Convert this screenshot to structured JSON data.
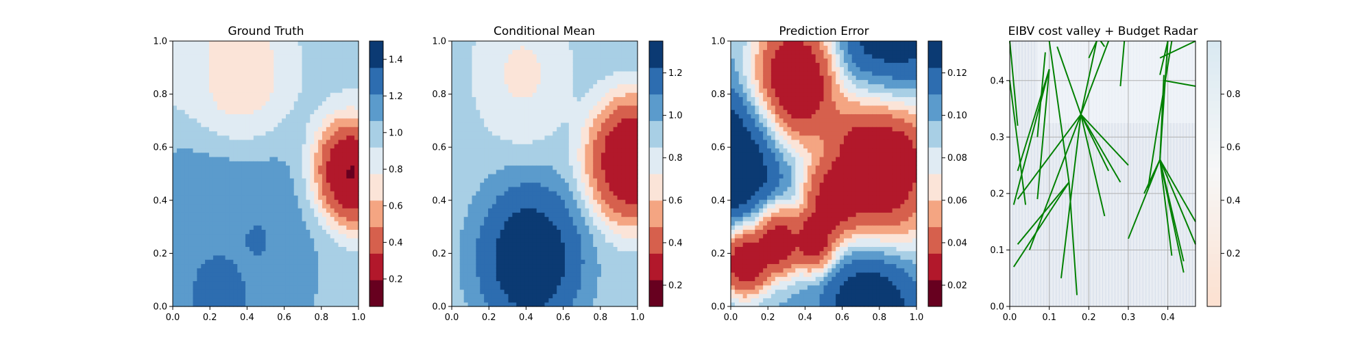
{
  "chart_data": [
    {
      "type": "heatmap",
      "title": "Ground Truth",
      "xlim": [
        0,
        1
      ],
      "ylim": [
        0,
        1
      ],
      "xticks": [
        "0.0",
        "0.2",
        "0.4",
        "0.6",
        "0.8",
        "1.0"
      ],
      "yticks": [
        "0.0",
        "0.2",
        "0.4",
        "0.6",
        "0.8",
        "1.0"
      ],
      "colormap": "RdBu",
      "colorbar": {
        "range": [
          0.05,
          1.5
        ],
        "ticks": [
          "0.2",
          "0.4",
          "0.6",
          "0.8",
          "1.0",
          "1.2",
          "1.4"
        ],
        "tick_values": [
          0.2,
          0.4,
          0.6,
          0.8,
          1.0,
          1.2,
          1.4
        ]
      },
      "features": [
        {
          "x": 0.95,
          "y": 0.5,
          "value": 0.05,
          "spread": 0.1
        },
        {
          "x": 0.35,
          "y": 0.85,
          "value": 0.65,
          "spread": 0.13
        },
        {
          "x": 0.3,
          "y": 0.2,
          "value": 1.2,
          "spread": 0.25
        },
        {
          "x": 0.25,
          "y": 0.05,
          "value": 1.45,
          "spread": 0.08
        },
        {
          "x": 0.45,
          "y": 0.25,
          "value": 1.45,
          "spread": 0.03
        },
        {
          "x": 0.05,
          "y": 0.85,
          "value": 0.9,
          "spread": 0.08
        }
      ],
      "base_value": 0.95
    },
    {
      "type": "heatmap",
      "title": "Conditional Mean",
      "xlim": [
        0,
        1
      ],
      "ylim": [
        0,
        1
      ],
      "xticks": [
        "0.0",
        "0.2",
        "0.4",
        "0.6",
        "0.8",
        "1.0"
      ],
      "yticks": [
        "0.0",
        "0.2",
        "0.4",
        "0.6",
        "0.8",
        "1.0"
      ],
      "colormap": "RdBu",
      "colorbar": {
        "range": [
          0.1,
          1.35
        ],
        "ticks": [
          "0.2",
          "0.4",
          "0.6",
          "0.8",
          "1.0",
          "1.2"
        ],
        "tick_values": [
          0.2,
          0.4,
          0.6,
          0.8,
          1.0,
          1.2
        ]
      },
      "features": [
        {
          "x": 0.97,
          "y": 0.55,
          "value": 0.12,
          "spread": 0.12
        },
        {
          "x": 0.38,
          "y": 0.88,
          "value": 0.68,
          "spread": 0.12
        },
        {
          "x": 0.42,
          "y": 0.18,
          "value": 1.35,
          "spread": 0.14
        }
      ],
      "base_value": 0.92
    },
    {
      "type": "heatmap",
      "title": "Prediction Error",
      "xlim": [
        0,
        1
      ],
      "ylim": [
        0,
        1
      ],
      "xticks": [
        "0.0",
        "0.2",
        "0.4",
        "0.6",
        "0.8",
        "1.0"
      ],
      "yticks": [
        "0.0",
        "0.2",
        "0.4",
        "0.6",
        "0.8",
        "1.0"
      ],
      "colormap": "RdBu",
      "colorbar": {
        "range": [
          0.01,
          0.135
        ],
        "ticks": [
          "0.02",
          "0.04",
          "0.06",
          "0.08",
          "0.10",
          "0.12"
        ],
        "tick_values": [
          0.02,
          0.04,
          0.06,
          0.08,
          0.1,
          0.12
        ]
      },
      "features": [
        {
          "x": 0.35,
          "y": 0.85,
          "value": 0.01,
          "spread": 0.12
        },
        {
          "x": 0.8,
          "y": 0.55,
          "value": 0.01,
          "spread": 0.16
        },
        {
          "x": 0.08,
          "y": 0.18,
          "value": 0.01,
          "spread": 0.07
        },
        {
          "x": 0.25,
          "y": 0.25,
          "value": 0.015,
          "spread": 0.07
        },
        {
          "x": 0.45,
          "y": 0.25,
          "value": 0.015,
          "spread": 0.06
        },
        {
          "x": 0.55,
          "y": 0.4,
          "value": 0.02,
          "spread": 0.08
        },
        {
          "x": 0.0,
          "y": 0.55,
          "value": 0.135,
          "spread": 0.14
        },
        {
          "x": 0.75,
          "y": 0.0,
          "value": 0.135,
          "spread": 0.12
        },
        {
          "x": 0.85,
          "y": 1.0,
          "value": 0.135,
          "spread": 0.14
        }
      ],
      "base_value": 0.1
    },
    {
      "type": "heatmap",
      "title": "EIBV cost valley + Budget Radar",
      "xlim": [
        0,
        0.47
      ],
      "ylim": [
        0,
        0.47
      ],
      "xticks": [
        "0.0",
        "0.1",
        "0.2",
        "0.3",
        "0.4"
      ],
      "tick_values": [
        0,
        0.1,
        0.2,
        0.3,
        0.4
      ],
      "yticks": [
        "0.0",
        "0.1",
        "0.2",
        "0.3",
        "0.4"
      ],
      "grid": true,
      "colormap": "RdBu",
      "colorbar": {
        "range": [
          0,
          1
        ],
        "ticks": [
          "0.2",
          "0.4",
          "0.6",
          "0.8"
        ],
        "tick_values": [
          0.2,
          0.4,
          0.6,
          0.8
        ]
      },
      "background_value": 0.88,
      "line_color": "#008000",
      "lines": [
        [
          0.18,
          0.34,
          0.28,
          0.22
        ],
        [
          0.18,
          0.34,
          0.25,
          0.24
        ],
        [
          0.18,
          0.34,
          0.24,
          0.16
        ],
        [
          0.18,
          0.34,
          0.13,
          0.05
        ],
        [
          0.18,
          0.34,
          0.02,
          0.19
        ],
        [
          0.18,
          0.34,
          0.22,
          0.47
        ],
        [
          0.18,
          0.34,
          0.05,
          0.1
        ],
        [
          0.18,
          0.34,
          0.12,
          0.46
        ],
        [
          0.18,
          0.34,
          0.3,
          0.25
        ],
        [
          0.18,
          0.34,
          0.25,
          0.47
        ],
        [
          0.15,
          0.22,
          0.1,
          0.47
        ],
        [
          0.15,
          0.22,
          0.17,
          0.02
        ],
        [
          0.15,
          0.22,
          0.01,
          0.07
        ],
        [
          0.15,
          0.22,
          0.02,
          0.11
        ],
        [
          0.1,
          0.42,
          0.02,
          0.24
        ],
        [
          0.1,
          0.42,
          0.07,
          0.19
        ],
        [
          0.1,
          0.42,
          0.01,
          0.18
        ],
        [
          0.0,
          0.47,
          0.02,
          0.32
        ],
        [
          0.0,
          0.4,
          0.04,
          0.18
        ],
        [
          0.09,
          0.45,
          0.07,
          0.3
        ],
        [
          0.38,
          0.26,
          0.3,
          0.12
        ],
        [
          0.38,
          0.26,
          0.44,
          0.06
        ],
        [
          0.38,
          0.26,
          0.47,
          0.11
        ],
        [
          0.38,
          0.26,
          0.4,
          0.47
        ],
        [
          0.38,
          0.26,
          0.41,
          0.09
        ],
        [
          0.38,
          0.26,
          0.34,
          0.2
        ],
        [
          0.38,
          0.26,
          0.39,
          0.41
        ],
        [
          0.38,
          0.26,
          0.47,
          0.15
        ],
        [
          0.38,
          0.26,
          0.44,
          0.08
        ],
        [
          0.37,
          0.3,
          0.41,
          0.47
        ],
        [
          0.37,
          0.3,
          0.35,
          0.21
        ],
        [
          0.39,
          0.4,
          0.47,
          0.39
        ],
        [
          0.38,
          0.44,
          0.47,
          0.47
        ],
        [
          0.38,
          0.41,
          0.4,
          0.47
        ],
        [
          0.29,
          0.47,
          0.28,
          0.39
        ],
        [
          0.23,
          0.47,
          0.24,
          0.46
        ],
        [
          0.2,
          0.44,
          0.22,
          0.47
        ]
      ]
    }
  ]
}
